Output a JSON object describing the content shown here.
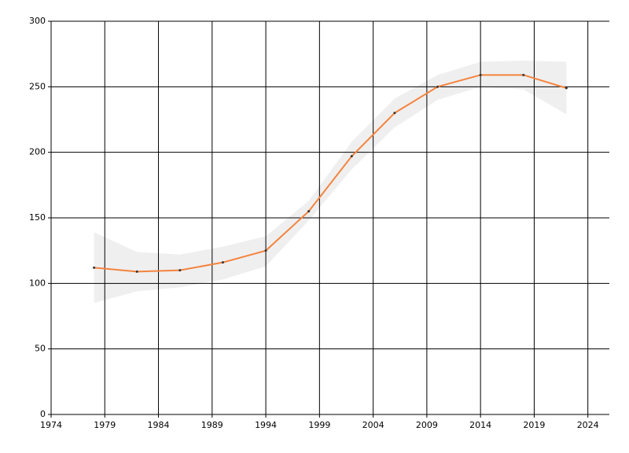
{
  "chart_data": {
    "type": "line",
    "x": [
      1978,
      1982,
      1986,
      1990,
      1994,
      1998,
      2002,
      2006,
      2010,
      2014,
      2018,
      2022
    ],
    "series": [
      {
        "color": "#f4843f",
        "values": [
          112,
          109,
          110,
          116,
          125,
          155,
          197,
          230,
          250,
          259,
          259,
          249
        ]
      }
    ],
    "band": {
      "color": "#efefef",
      "upper": [
        139,
        124,
        122,
        128,
        136,
        163,
        208,
        241,
        259,
        269,
        270,
        269
      ],
      "lower": [
        85,
        94,
        97,
        103,
        113,
        148,
        187,
        219,
        240,
        250,
        248,
        229
      ]
    },
    "xlim": [
      1974,
      2026
    ],
    "xticks": [
      1974,
      1979,
      1984,
      1989,
      1994,
      1999,
      2004,
      2009,
      2014,
      2019,
      2024
    ],
    "ylim": [
      0,
      300
    ],
    "yticks": [
      0,
      50,
      100,
      150,
      200,
      250,
      300
    ],
    "grid": true
  }
}
